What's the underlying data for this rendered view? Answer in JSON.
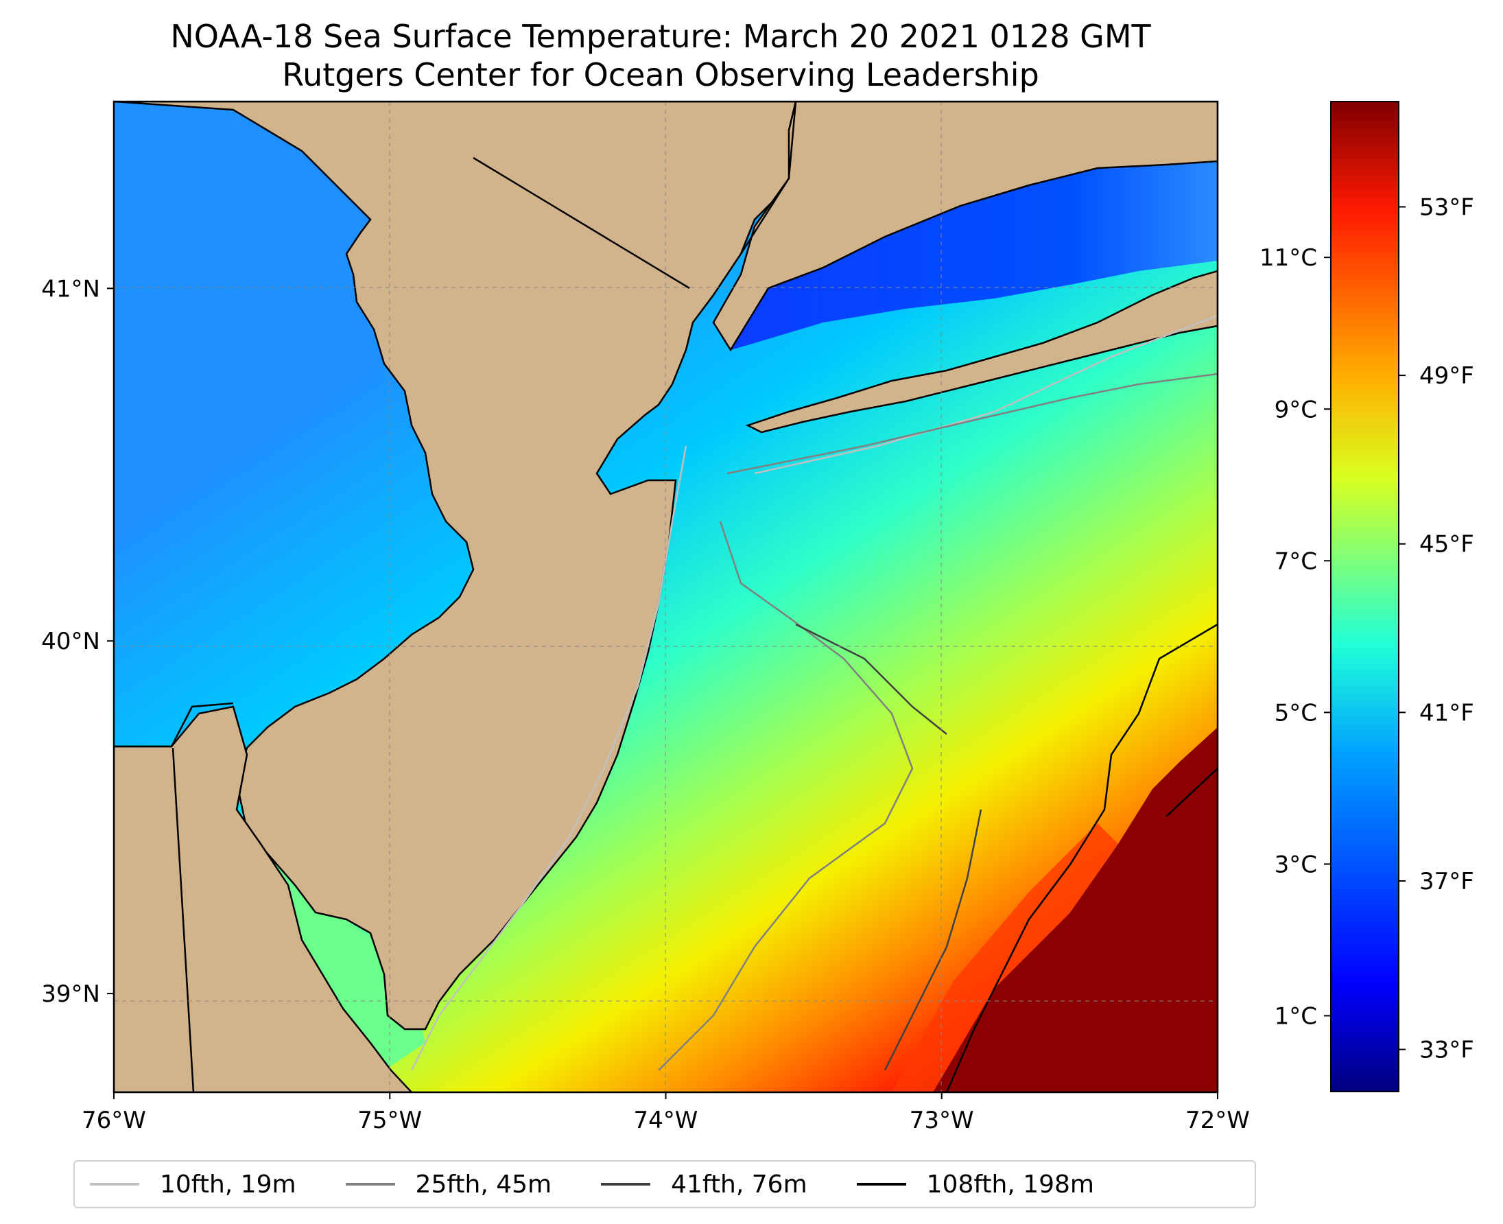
{
  "title": {
    "line1": "NOAA-18 Sea Surface Temperature: March 20 2021 0128 GMT",
    "line2": "Rutgers Center for Ocean Observing Leadership"
  },
  "map": {
    "lon_range": [
      -76,
      -72
    ],
    "lat_range": [
      38.72,
      41.53
    ],
    "land_color": "#d2b48c",
    "lon_ticks": [
      {
        "value": -76,
        "label": "76°W"
      },
      {
        "value": -75,
        "label": "75°W"
      },
      {
        "value": -74,
        "label": "74°W"
      },
      {
        "value": -73,
        "label": "73°W"
      },
      {
        "value": -72,
        "label": "72°W"
      }
    ],
    "lat_ticks": [
      {
        "value": 41,
        "label": "41°N"
      },
      {
        "value": 40,
        "label": "40°N"
      },
      {
        "value": 39,
        "label": "39°N"
      }
    ],
    "gridlines": "dashed"
  },
  "colorbar": {
    "colormap": "jet",
    "range_f": [
      32,
      55.5
    ],
    "fahrenheit_ticks": [
      {
        "value": 33,
        "label": "33°F"
      },
      {
        "value": 37,
        "label": "37°F"
      },
      {
        "value": 41,
        "label": "41°F"
      },
      {
        "value": 45,
        "label": "45°F"
      },
      {
        "value": 49,
        "label": "49°F"
      },
      {
        "value": 53,
        "label": "53°F"
      }
    ],
    "celsius_ticks": [
      {
        "value": 1,
        "label": "1°C"
      },
      {
        "value": 3,
        "label": "3°C"
      },
      {
        "value": 5,
        "label": "5°C"
      },
      {
        "value": 7,
        "label": "7°C"
      },
      {
        "value": 9,
        "label": "9°C"
      },
      {
        "value": 11,
        "label": "11°C"
      }
    ]
  },
  "legend": {
    "items": [
      {
        "label": "10fth, 19m",
        "color": "#c0c0c0"
      },
      {
        "label": "25fth, 45m",
        "color": "#808080"
      },
      {
        "label": "41fth, 76m",
        "color": "#404040"
      },
      {
        "label": "108fth, 198m",
        "color": "#000000"
      }
    ]
  }
}
